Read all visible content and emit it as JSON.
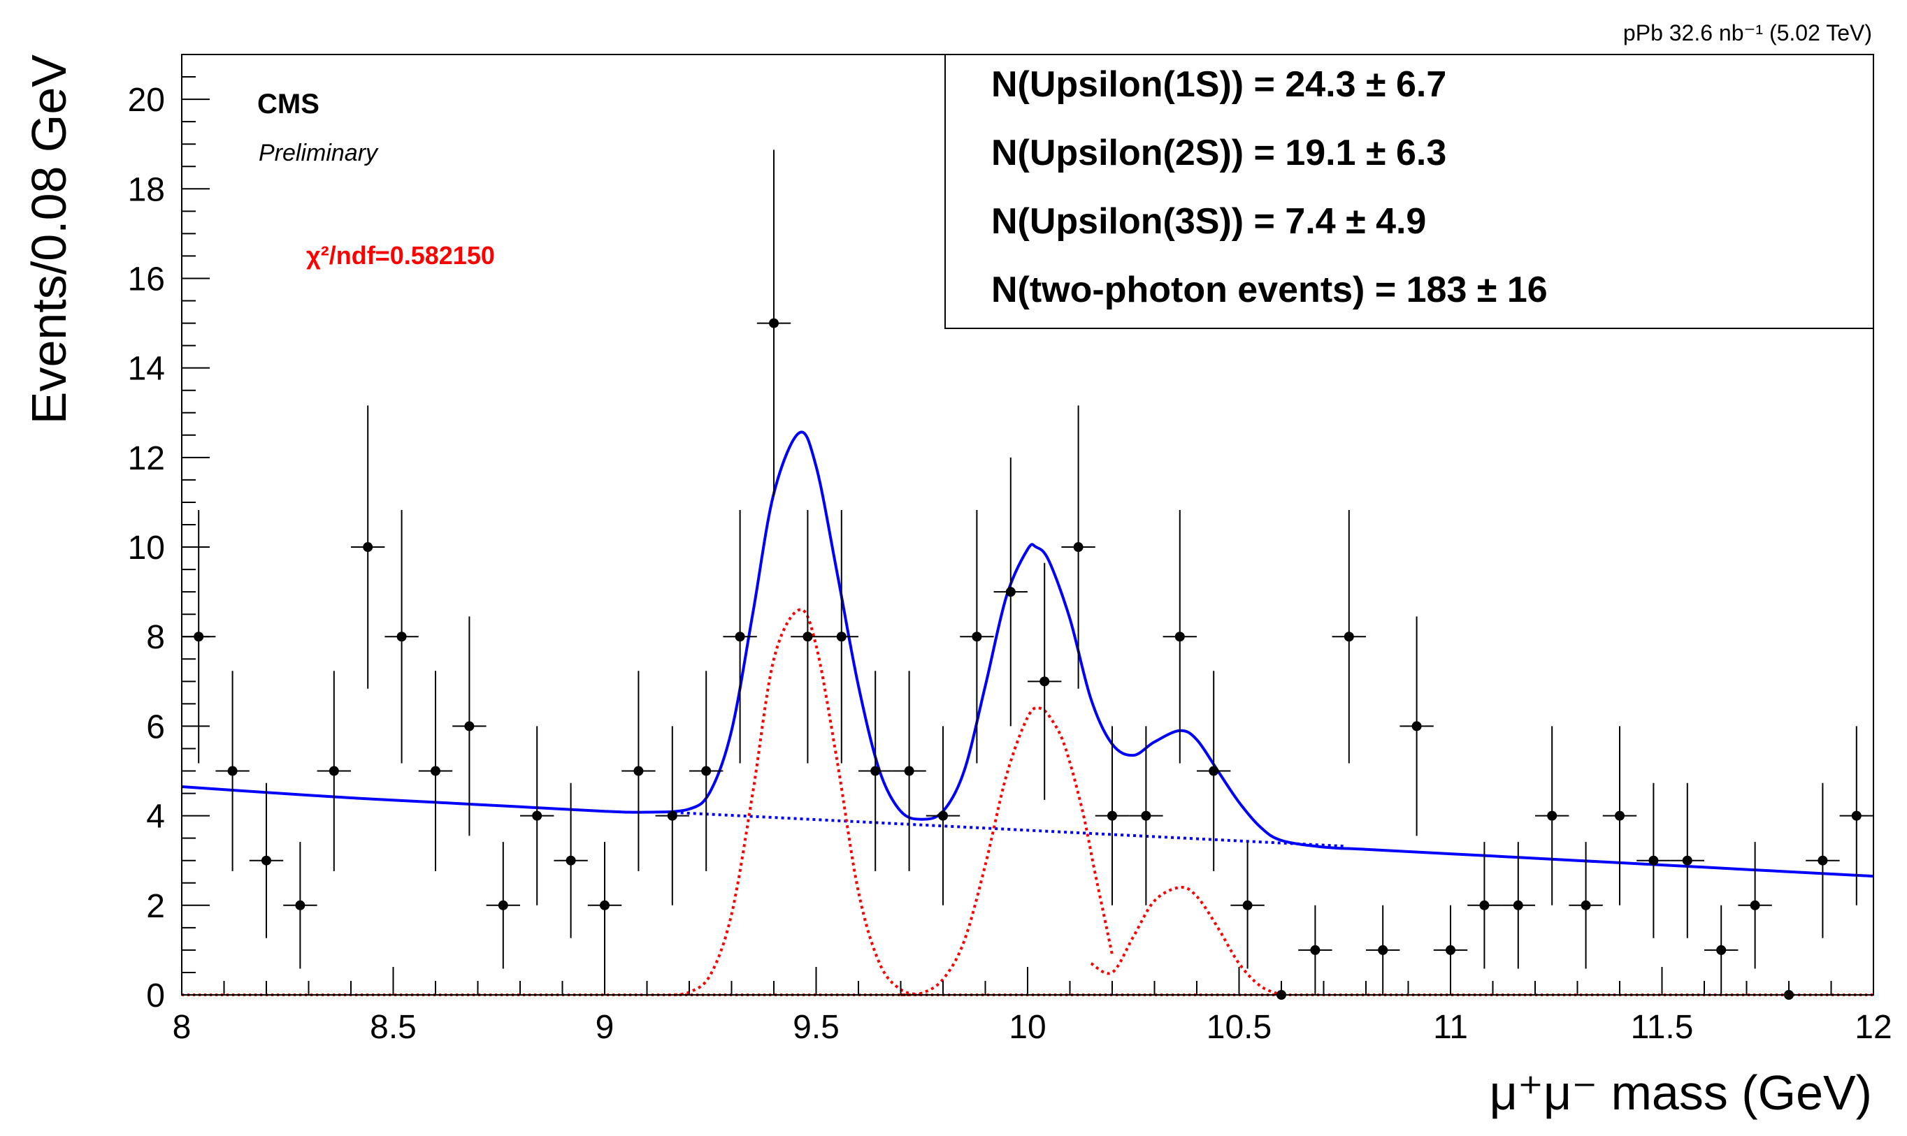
{
  "chart_data": {
    "type": "scatter",
    "title": "",
    "xlabel_main": "μ⁺μ⁻ mass (GeV)",
    "ylabel": "Events/0.08 GeV",
    "xlim": [
      8,
      12
    ],
    "ylim": [
      0,
      21
    ],
    "x_ticks": [
      "8",
      "8.5",
      "9",
      "9.5",
      "10",
      "10.5",
      "11",
      "11.5",
      "12"
    ],
    "y_ticks": [
      "0",
      "2",
      "4",
      "6",
      "8",
      "10",
      "12",
      "14",
      "16",
      "18",
      "20"
    ],
    "lumi": "pPb 32.6 nb⁻¹ (5.02 TeV)",
    "experiment": "CMS",
    "status": "Preliminary",
    "chi2": "χ²/ndf=0.582150",
    "legend": [
      {
        "label": "N(Upsilon(1S)) =",
        "value": "24.3",
        "error": "± 6.7"
      },
      {
        "label": "N(Upsilon(2S)) =",
        "value": "19.1",
        "error": "± 6.3"
      },
      {
        "label": "N(Upsilon(3S)) =",
        "value": "7.4",
        "error": "± 4.9"
      },
      {
        "label": "N(two-photon events) =",
        "value": "183",
        "error": "± 16"
      }
    ],
    "series": [
      {
        "name": "data",
        "bin_width": 0.08,
        "x": [
          8.04,
          8.12,
          8.2,
          8.28,
          8.36,
          8.44,
          8.52,
          8.6,
          8.68,
          8.76,
          8.84,
          8.92,
          9.0,
          9.08,
          9.16,
          9.24,
          9.32,
          9.4,
          9.48,
          9.56,
          9.64,
          9.72,
          9.8,
          9.88,
          9.96,
          10.04,
          10.12,
          10.2,
          10.28,
          10.36,
          10.44,
          10.52,
          10.6,
          10.68,
          10.76,
          10.84,
          10.92,
          11.0,
          11.08,
          11.16,
          11.24,
          11.32,
          11.4,
          11.48,
          11.56,
          11.64,
          11.72,
          11.8,
          11.88,
          11.96
        ],
        "y": [
          8,
          5,
          3,
          2,
          5,
          10,
          8,
          5,
          6,
          2,
          4,
          3,
          2,
          5,
          4,
          5,
          8,
          15,
          8,
          8,
          5,
          5,
          4,
          8,
          9,
          7,
          10,
          4,
          4,
          8,
          5,
          2,
          0,
          1,
          8,
          1,
          6,
          1,
          2,
          2,
          4,
          2,
          4,
          3,
          3,
          1,
          2,
          0,
          3,
          4
        ]
      },
      {
        "name": "total fit",
        "color": "#0000ff",
        "style": "solid",
        "x": [
          8.0,
          8.2,
          8.4,
          8.6,
          8.8,
          9.0,
          9.1,
          9.2,
          9.25,
          9.3,
          9.35,
          9.4,
          9.46,
          9.5,
          9.55,
          9.6,
          9.65,
          9.7,
          9.75,
          9.8,
          9.85,
          9.9,
          9.95,
          10.0,
          10.02,
          10.05,
          10.1,
          10.15,
          10.2,
          10.25,
          10.3,
          10.36,
          10.4,
          10.45,
          10.5,
          10.55,
          10.6,
          10.7,
          10.8,
          11.0,
          11.2,
          11.4,
          11.6,
          11.8,
          12.0
        ],
        "y": [
          4.65,
          4.52,
          4.4,
          4.3,
          4.2,
          4.1,
          4.08,
          4.15,
          4.55,
          5.9,
          8.5,
          11.2,
          12.55,
          11.8,
          9.4,
          6.9,
          5.0,
          4.1,
          3.92,
          4.1,
          5.0,
          6.9,
          8.9,
          9.95,
          10.0,
          9.7,
          8.4,
          6.6,
          5.6,
          5.35,
          5.65,
          5.9,
          5.7,
          5.0,
          4.3,
          3.75,
          3.45,
          3.3,
          3.25,
          3.15,
          3.05,
          2.95,
          2.85,
          2.75,
          2.65
        ]
      },
      {
        "name": "two-photon background",
        "color": "#0000ff",
        "style": "dotted",
        "x": [
          9.15,
          10.75
        ],
        "y": [
          4.08,
          3.32
        ]
      },
      {
        "name": "Upsilon(1S)",
        "color": "#ff0000",
        "style": "dotted",
        "x": [
          9.15,
          9.2,
          9.25,
          9.3,
          9.35,
          9.4,
          9.46,
          9.5,
          9.55,
          9.6,
          9.65,
          9.7,
          9.75
        ],
        "y": [
          0,
          0.06,
          0.45,
          1.8,
          4.5,
          7.5,
          8.6,
          7.8,
          5.2,
          2.3,
          0.7,
          0.12,
          0
        ]
      },
      {
        "name": "Upsilon(2S)",
        "color": "#ff0000",
        "style": "dotted",
        "x": [
          9.7,
          9.75,
          9.8,
          9.85,
          9.9,
          9.95,
          10.0,
          10.03,
          10.06,
          10.09,
          10.13,
          10.16,
          10.2
        ],
        "y": [
          0,
          0.04,
          0.35,
          1.2,
          2.9,
          4.9,
          6.2,
          6.4,
          6.1,
          5.5,
          4.1,
          2.7,
          0.9
        ]
      },
      {
        "name": "Upsilon(3S)",
        "color": "#ff0000",
        "style": "dotted",
        "x": [
          10.15,
          10.2,
          10.25,
          10.3,
          10.36,
          10.4,
          10.45,
          10.5,
          10.55,
          10.6
        ],
        "y": [
          0.7,
          0.5,
          1.3,
          2.1,
          2.4,
          2.2,
          1.5,
          0.7,
          0.2,
          0
        ]
      }
    ]
  }
}
